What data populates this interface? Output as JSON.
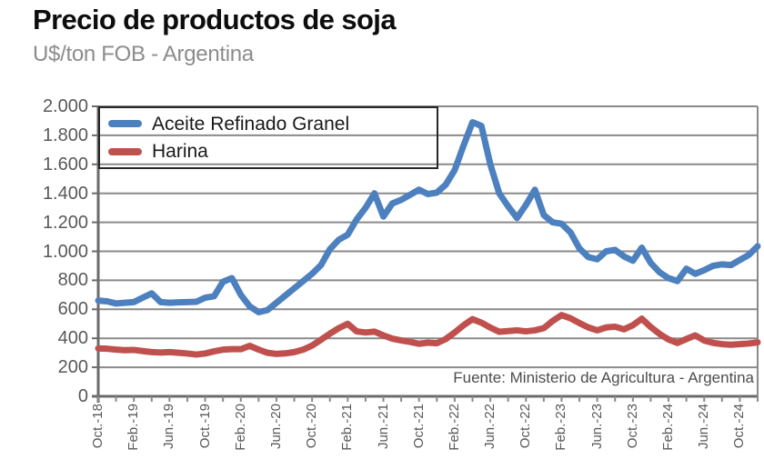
{
  "header": {
    "title": "Precio de productos de soja",
    "subtitle": "U$/ton FOB - Argentina"
  },
  "source_note": "Fuente: Ministerio de Agricultura - Argentina",
  "legend": {
    "items": [
      {
        "label": "Aceite Refinado Granel",
        "color": "#4d80be"
      },
      {
        "label": "Harina",
        "color": "#c0504d"
      }
    ]
  },
  "chart_data": {
    "type": "line",
    "title": "Precio de productos de soja",
    "subtitle": "U$/ton FOB - Argentina",
    "ylabel": "U$/ton FOB",
    "ylim": [
      0,
      2000
    ],
    "y_tick_step": 200,
    "y_tick_labels": [
      "0",
      "200",
      "400",
      "600",
      "800",
      "1.000",
      "1.200",
      "1.400",
      "1.600",
      "1.800",
      "2.000"
    ],
    "x_unit": "month",
    "x_range": "Oct-2018 to Dec-2024, monthly",
    "x_tick_labels": [
      "Oct.-18",
      "Feb.-19",
      "Jun.-19",
      "Oct.-19",
      "Feb.-20",
      "Jun.-20",
      "Oct.-20",
      "Feb.-21",
      "Jun.-21",
      "Oct.-21",
      "Feb.-22",
      "Jun.-22",
      "Oct.-22",
      "Feb.-23",
      "Jun.-23",
      "Oct.-23",
      "Feb.-24",
      "Jun.-24",
      "Oct.-24"
    ],
    "x_label_every": 4,
    "x_minor_tick_every": 2,
    "grid": "horizontal",
    "legend_position": "top-left-inside",
    "series": [
      {
        "name": "Aceite Refinado Granel",
        "color": "#4d80be",
        "values": [
          660,
          655,
          640,
          645,
          650,
          680,
          710,
          650,
          645,
          648,
          650,
          652,
          680,
          690,
          790,
          815,
          700,
          620,
          580,
          595,
          645,
          695,
          745,
          795,
          845,
          905,
          1015,
          1080,
          1115,
          1220,
          1300,
          1400,
          1240,
          1330,
          1355,
          1390,
          1425,
          1395,
          1405,
          1460,
          1560,
          1730,
          1890,
          1865,
          1600,
          1400,
          1310,
          1230,
          1320,
          1425,
          1250,
          1200,
          1190,
          1130,
          1020,
          960,
          945,
          1000,
          1010,
          965,
          935,
          1025,
          920,
          855,
          815,
          795,
          880,
          845,
          870,
          900,
          910,
          905,
          940,
          975,
          1035
        ]
      },
      {
        "name": "Harina",
        "color": "#c0504d",
        "values": [
          330,
          328,
          322,
          318,
          320,
          312,
          305,
          302,
          305,
          300,
          295,
          288,
          295,
          310,
          322,
          325,
          325,
          348,
          322,
          300,
          292,
          296,
          305,
          322,
          350,
          390,
          432,
          470,
          500,
          448,
          440,
          446,
          420,
          398,
          385,
          375,
          362,
          370,
          366,
          395,
          440,
          490,
          532,
          508,
          474,
          445,
          450,
          455,
          448,
          455,
          470,
          520,
          560,
          538,
          505,
          475,
          455,
          475,
          480,
          462,
          490,
          535,
          478,
          430,
          392,
          368,
          395,
          420,
          385,
          368,
          360,
          356,
          360,
          364,
          372
        ]
      }
    ]
  }
}
